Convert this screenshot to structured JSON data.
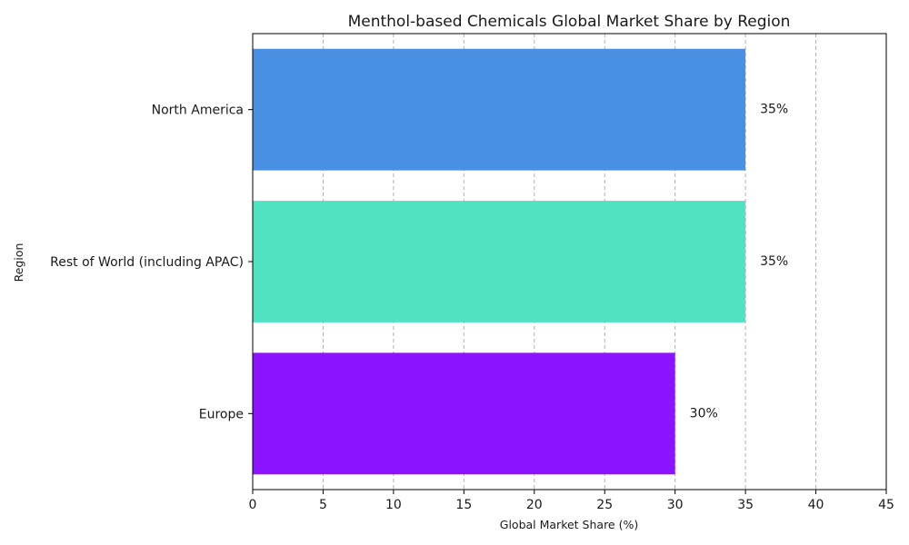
{
  "chart_data": {
    "type": "bar",
    "orientation": "horizontal",
    "title": "Menthol-based Chemicals Global Market Share by Region",
    "xlabel": "Global Market Share (%)",
    "ylabel": "Region",
    "categories": [
      "Europe",
      "Rest of World (including APAC)",
      "North America"
    ],
    "values": [
      30,
      35,
      35
    ],
    "data_labels": [
      "30%",
      "35%",
      "35%"
    ],
    "colors": [
      "#8b13ff",
      "#50e2c1",
      "#4a90e2"
    ],
    "xlim": [
      0,
      45
    ],
    "xticks": [
      0,
      5,
      10,
      15,
      20,
      25,
      30,
      35,
      40,
      45
    ],
    "grid": {
      "x": true,
      "y": false,
      "style": "dashed",
      "color": "#b0b0b0"
    }
  }
}
